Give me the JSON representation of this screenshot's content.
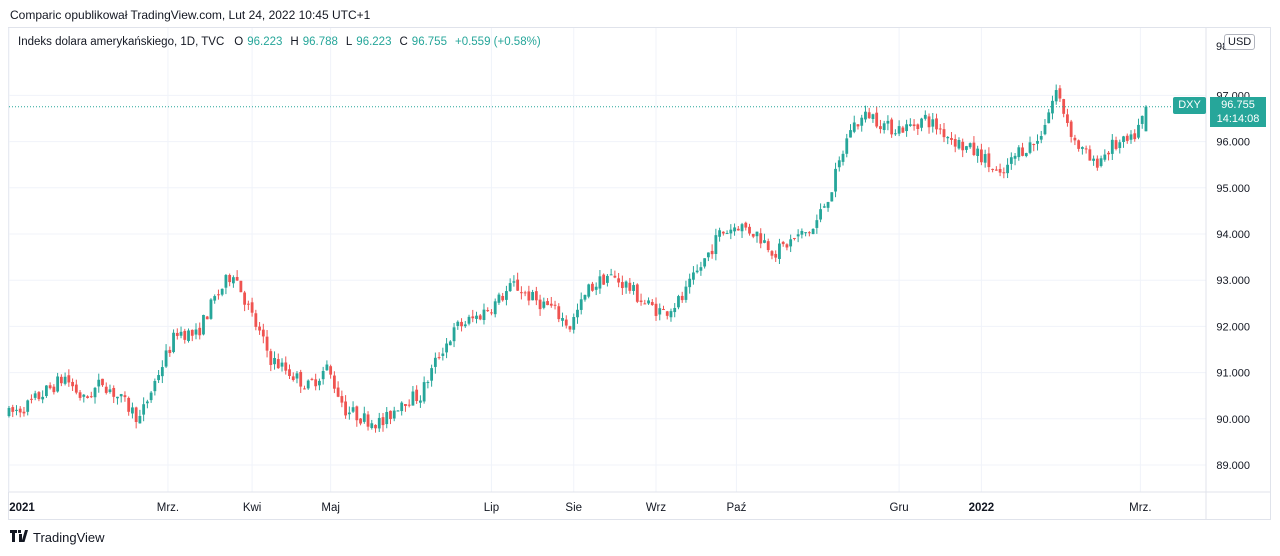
{
  "header": {
    "published_by": "Comparic opublikował TradingView.com, Lut 24, 2022 10:45 UTC+1"
  },
  "legend": {
    "symbol": "Indeks dolara amerykańskiego, 1D, TVC",
    "o_label": "O",
    "o_value": "96.223",
    "h_label": "H",
    "h_value": "96.788",
    "l_label": "L",
    "l_value": "96.223",
    "c_label": "C",
    "c_value": "96.755",
    "change": "+0.559 (+0.58%)"
  },
  "price_axis": {
    "currency": "USD",
    "top_cut_label": "98"
  },
  "last_price": {
    "ticker": "DXY",
    "price": "96.755",
    "countdown": "14:14:08"
  },
  "colors": {
    "up": "#26a69a",
    "down": "#ef5350",
    "grid": "#f0f3fa",
    "axis_text": "#131722"
  },
  "footer": {
    "brand": "TradingView",
    "logo_icon": "tradingview-logo-icon"
  },
  "chart_data": {
    "type": "candlestick",
    "title": "Indeks dolara amerykańskiego, 1D, TVC",
    "xlabel": "",
    "ylabel": "USD",
    "ylim": [
      88.4,
      98.5
    ],
    "y_ticks": [
      89.0,
      90.0,
      91.0,
      92.0,
      93.0,
      94.0,
      95.0,
      96.0,
      97.0
    ],
    "y_tick_labels": [
      "89.000",
      "90.000",
      "91.000",
      "92.000",
      "93.000",
      "94.000",
      "95.000",
      "96.000",
      "97.000"
    ],
    "x_tick_labels": [
      {
        "label": "2021",
        "bold": true,
        "week": 0
      },
      {
        "label": "Mrz.",
        "bold": false,
        "week": 8.5
      },
      {
        "label": "Kwi",
        "bold": false,
        "week": 13
      },
      {
        "label": "Maj",
        "bold": false,
        "week": 17.2
      },
      {
        "label": "Lip",
        "bold": false,
        "week": 25.8
      },
      {
        "label": "Sie",
        "bold": false,
        "week": 30.2
      },
      {
        "label": "Wrz",
        "bold": false,
        "week": 34.6
      },
      {
        "label": "Paź",
        "bold": false,
        "week": 38.9
      },
      {
        "label": "Gru",
        "bold": false,
        "week": 47.6
      },
      {
        "label": "2022",
        "bold": true,
        "week": 52
      },
      {
        "label": "Mrz.",
        "bold": false,
        "week": 60.5
      }
    ],
    "weekly_closes": [
      90.1,
      90.3,
      90.6,
      90.9,
      90.4,
      90.8,
      90.4,
      90.0,
      91.0,
      91.9,
      91.8,
      92.6,
      93.2,
      92.2,
      91.3,
      91.0,
      90.7,
      91.1,
      90.2,
      90.0,
      89.9,
      90.4,
      90.5,
      91.4,
      92.0,
      92.2,
      92.5,
      92.9,
      92.6,
      92.4,
      92.0,
      92.8,
      93.1,
      92.9,
      92.5,
      92.3,
      92.6,
      93.3,
      94.0,
      94.2,
      94.0,
      93.6,
      93.9,
      94.1,
      95.0,
      96.3,
      96.6,
      96.3,
      96.3,
      96.5,
      96.2,
      95.9,
      95.7,
      95.2,
      95.8,
      96.0,
      97.1,
      96.0,
      95.5,
      95.9,
      96.0,
      96.755
    ],
    "last": {
      "open": 96.223,
      "high": 96.788,
      "low": 96.223,
      "close": 96.755
    }
  }
}
